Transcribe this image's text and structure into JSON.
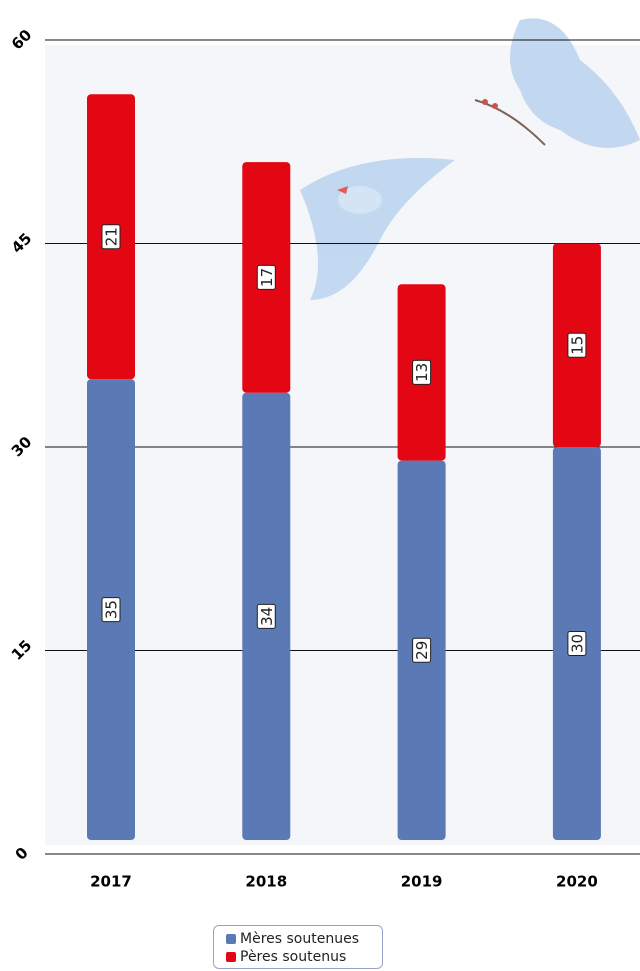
{
  "chart_data": {
    "type": "stacked-bar",
    "categories": [
      "2017",
      "2018",
      "2019",
      "2020"
    ],
    "series": [
      {
        "name": "Mères soutenues",
        "color": "#5b79b5",
        "values": [
          35,
          34,
          29,
          30
        ]
      },
      {
        "name": "Pères soutenus",
        "color": "#e30613",
        "values": [
          21,
          17,
          13,
          15
        ]
      }
    ],
    "ylim": [
      0,
      60
    ],
    "yticks": [
      0,
      15,
      30,
      45,
      60
    ],
    "grid": true
  }
}
